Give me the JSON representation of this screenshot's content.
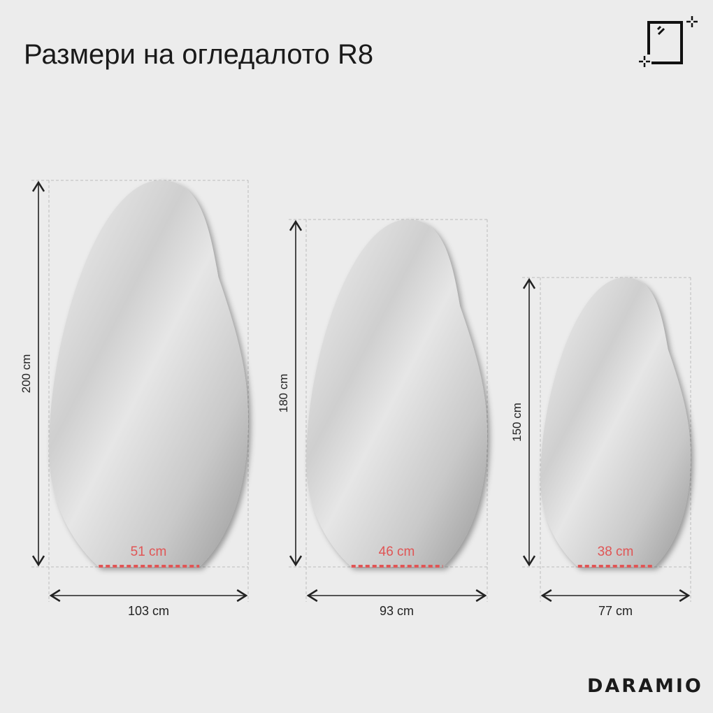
{
  "title": "Размери на огледалото R8",
  "logo": "DARAMIO",
  "icon": "mirror-icon",
  "colors": {
    "background": "#ececec",
    "base_marker": "#e05555",
    "text": "#1a1a1a"
  },
  "mirrors": [
    {
      "height_label": "200 cm",
      "width_label": "103 cm",
      "base_label": "51 cm"
    },
    {
      "height_label": "180 cm",
      "width_label": "93 cm",
      "base_label": "46 cm"
    },
    {
      "height_label": "150 cm",
      "width_label": "77 cm",
      "base_label": "38 cm"
    }
  ]
}
